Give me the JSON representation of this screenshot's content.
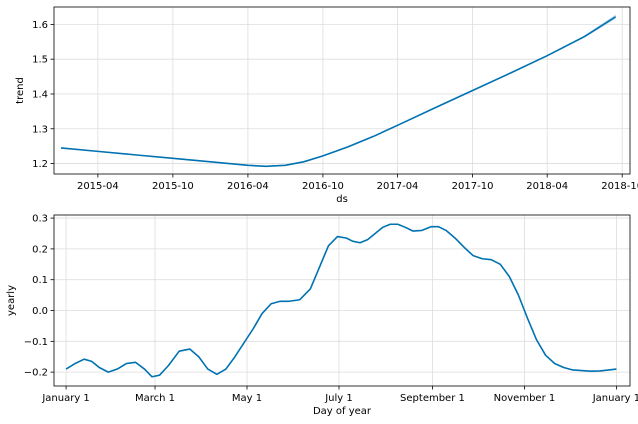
{
  "colors": {
    "line": "#0072B2",
    "band": "#8fbce0",
    "grid": "#dddddd"
  },
  "chart_data": [
    {
      "type": "line",
      "xlabel": "ds",
      "ylabel": "trend",
      "xlim": [
        "2014-12-15",
        "2018-10-20"
      ],
      "ylim": [
        1.17,
        1.65
      ],
      "grid": true,
      "x_ticks": [
        "2015-04",
        "2015-10",
        "2016-04",
        "2016-10",
        "2017-04",
        "2017-10",
        "2018-04",
        "2018-10"
      ],
      "x_tick_dates": [
        "2015-04-01",
        "2015-10-01",
        "2016-04-01",
        "2016-10-01",
        "2017-04-01",
        "2017-10-01",
        "2018-04-01",
        "2018-10-01"
      ],
      "y_ticks": [
        "1.2",
        "1.3",
        "1.4",
        "1.5",
        "1.6"
      ],
      "y_tick_values": [
        1.2,
        1.3,
        1.4,
        1.5,
        1.6
      ],
      "series": [
        {
          "x": [
            "2015-01-01",
            "2015-04-01",
            "2015-07-01",
            "2015-10-01",
            "2016-01-01",
            "2016-04-01",
            "2016-05-15",
            "2016-07-01",
            "2016-08-15",
            "2016-10-01",
            "2016-12-01",
            "2017-02-01",
            "2017-04-01",
            "2017-07-01",
            "2017-10-01",
            "2018-01-01",
            "2018-04-01",
            "2018-07-01",
            "2018-09-15"
          ],
          "y": [
            1.245,
            1.235,
            1.225,
            1.215,
            1.205,
            1.195,
            1.192,
            1.195,
            1.205,
            1.222,
            1.248,
            1.278,
            1.31,
            1.36,
            1.41,
            1.46,
            1.51,
            1.565,
            1.622
          ],
          "band_upper": [
            1.245,
            1.235,
            1.225,
            1.215,
            1.205,
            1.195,
            1.192,
            1.195,
            1.205,
            1.222,
            1.248,
            1.278,
            1.31,
            1.36,
            1.41,
            1.461,
            1.512,
            1.568,
            1.628
          ],
          "band_lower": [
            1.245,
            1.235,
            1.225,
            1.215,
            1.205,
            1.195,
            1.192,
            1.195,
            1.205,
            1.222,
            1.248,
            1.278,
            1.31,
            1.36,
            1.41,
            1.459,
            1.508,
            1.562,
            1.616
          ]
        }
      ]
    },
    {
      "type": "line",
      "xlabel": "Day of year",
      "ylabel": "yearly",
      "xlim": [
        -8,
        374
      ],
      "ylim": [
        -0.245,
        0.31
      ],
      "grid": true,
      "x_ticks": [
        "January 1",
        "March 1",
        "May 1",
        "July 1",
        "September 1",
        "November 1",
        "January 1"
      ],
      "x_tick_days": [
        0,
        59,
        120,
        181,
        243,
        304,
        365
      ],
      "y_ticks": [
        "−0.2",
        "−0.1",
        "0.0",
        "0.1",
        "0.2",
        "0.3"
      ],
      "y_tick_values": [
        -0.2,
        -0.1,
        0.0,
        0.1,
        0.2,
        0.3
      ],
      "series": [
        {
          "x": [
            0,
            6,
            12,
            17,
            22,
            28,
            34,
            40,
            46,
            52,
            57,
            62,
            68,
            75,
            82,
            88,
            94,
            100,
            106,
            112,
            118,
            124,
            130,
            136,
            142,
            148,
            155,
            162,
            168,
            174,
            180,
            186,
            190,
            195,
            200,
            205,
            210,
            215,
            220,
            225,
            230,
            236,
            242,
            247,
            252,
            258,
            264,
            270,
            276,
            282,
            288,
            294,
            300,
            306,
            312,
            318,
            324,
            330,
            336,
            342,
            348,
            354,
            360,
            365
          ],
          "y": [
            -0.19,
            -0.172,
            -0.158,
            -0.165,
            -0.185,
            -0.2,
            -0.19,
            -0.172,
            -0.168,
            -0.19,
            -0.215,
            -0.21,
            -0.178,
            -0.132,
            -0.125,
            -0.15,
            -0.19,
            -0.207,
            -0.19,
            -0.15,
            -0.105,
            -0.06,
            -0.01,
            0.022,
            0.03,
            0.03,
            0.035,
            0.07,
            0.14,
            0.21,
            0.24,
            0.235,
            0.225,
            0.22,
            0.23,
            0.25,
            0.27,
            0.28,
            0.28,
            0.27,
            0.258,
            0.26,
            0.272,
            0.272,
            0.26,
            0.235,
            0.205,
            0.178,
            0.168,
            0.165,
            0.15,
            0.11,
            0.05,
            -0.025,
            -0.095,
            -0.145,
            -0.172,
            -0.185,
            -0.193,
            -0.195,
            -0.197,
            -0.196,
            -0.193,
            -0.19
          ]
        }
      ]
    }
  ]
}
